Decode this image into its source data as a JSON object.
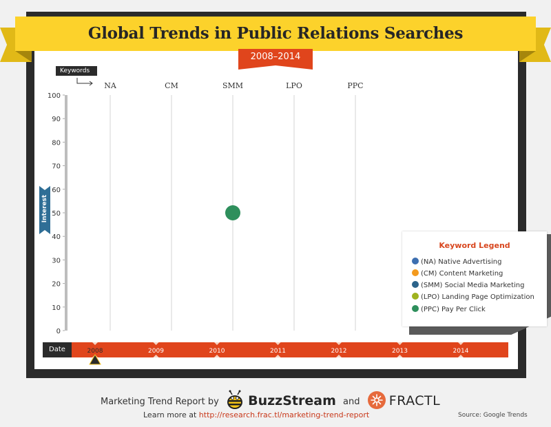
{
  "title": "Global Trends in Public Relations Searches",
  "subtitle": "2008–2014",
  "keywords_label": "Keywords",
  "interest_label": "Interest",
  "date_label": "Date",
  "colors": {
    "frame": "#2b2b2b",
    "ribbon": "#fcd22b",
    "accent": "#e0451c",
    "interest_tab": "#2f6e96",
    "legend_title": "#d8461e"
  },
  "legend": {
    "title": "Keyword Legend",
    "items": [
      {
        "label": "(NA) Native Advertising",
        "color": "#3d6fb0"
      },
      {
        "label": "(CM) Content Marketing",
        "color": "#f39a1e"
      },
      {
        "label": "(SMM) Social Media Marketing",
        "color": "#2b638a"
      },
      {
        "label": "(LPO) Landing Page Optimization",
        "color": "#9fb31f"
      },
      {
        "label": "(PPC) Pay Per Click",
        "color": "#2e8f5c"
      }
    ]
  },
  "timeline": {
    "years": [
      "2008",
      "2009",
      "2010",
      "2011",
      "2012",
      "2013",
      "2014"
    ],
    "selected": "2008"
  },
  "chart_data": {
    "type": "scatter",
    "categories": [
      "NA",
      "CM",
      "SMM",
      "LPO",
      "PPC"
    ],
    "ylim": [
      0,
      100
    ],
    "yticks": [
      0,
      10,
      20,
      30,
      40,
      50,
      60,
      70,
      80,
      90,
      100
    ],
    "points": [
      {
        "category": "SMM",
        "value": 50,
        "color": "#2e8f5c"
      }
    ],
    "ylabel": "Interest",
    "xlabel": "Keywords",
    "grid": "vertical"
  },
  "footer": {
    "report_text": "Marketing Trend Report by",
    "brand1": "BuzzStream",
    "and_text": "and",
    "brand2": "FRACTL",
    "learn_text": "Learn more at",
    "link": "http://research.frac.tl/marketing-trend-report",
    "source": "Source: Google Trends"
  }
}
